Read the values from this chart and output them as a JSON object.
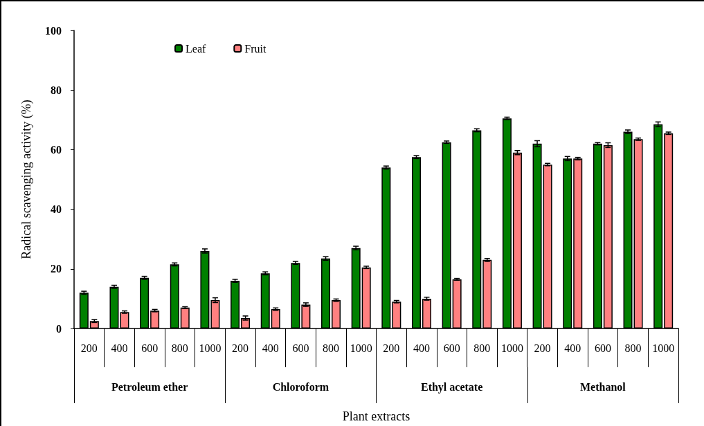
{
  "chart_data": {
    "type": "bar",
    "xlabel": "Plant extracts",
    "ylabel": "Radical scavenging activity (%)",
    "categories": [
      "200",
      "400",
      "600",
      "800",
      "1000",
      "200",
      "400",
      "600",
      "800",
      "1000",
      "200",
      "400",
      "600",
      "800",
      "1000",
      "200",
      "400",
      "600",
      "800",
      "1000"
    ],
    "annotations": [
      "Petroleum ether",
      "Chloroform",
      "Ethyl acetate",
      "Methanol"
    ],
    "series": [
      {
        "name": "Leaf",
        "color": "#008000",
        "values": [
          12,
          14,
          17,
          21.5,
          26,
          16,
          18.5,
          22,
          23.5,
          27,
          54,
          57.5,
          62.5,
          66.5,
          70.5,
          62,
          57,
          62,
          66,
          68.5
        ],
        "errors": [
          0.5,
          0.5,
          0.5,
          0.5,
          0.7,
          0.5,
          0.5,
          0.5,
          0.6,
          0.6,
          0.5,
          0.5,
          0.4,
          0.5,
          0.4,
          1,
          0.7,
          0.4,
          0.6,
          0.8
        ]
      },
      {
        "name": "Fruit",
        "color": "#ff8080",
        "values": [
          2.5,
          5.5,
          6,
          7,
          9.5,
          3.5,
          6.5,
          8,
          9.5,
          20.5,
          9,
          10,
          16.5,
          23,
          59,
          55,
          57,
          61.5,
          63.5,
          65.5
        ],
        "errors": [
          0.5,
          0.4,
          0.4,
          0.3,
          0.8,
          0.7,
          0.4,
          0.6,
          0.4,
          0.4,
          0.4,
          0.5,
          0.3,
          0.5,
          0.7,
          0.4,
          0.4,
          0.8,
          0.4,
          0.4
        ]
      }
    ],
    "ylim": [
      0,
      100
    ],
    "yticks": [
      0,
      20,
      40,
      60,
      80,
      100
    ],
    "grid": false,
    "legend": "top left"
  }
}
